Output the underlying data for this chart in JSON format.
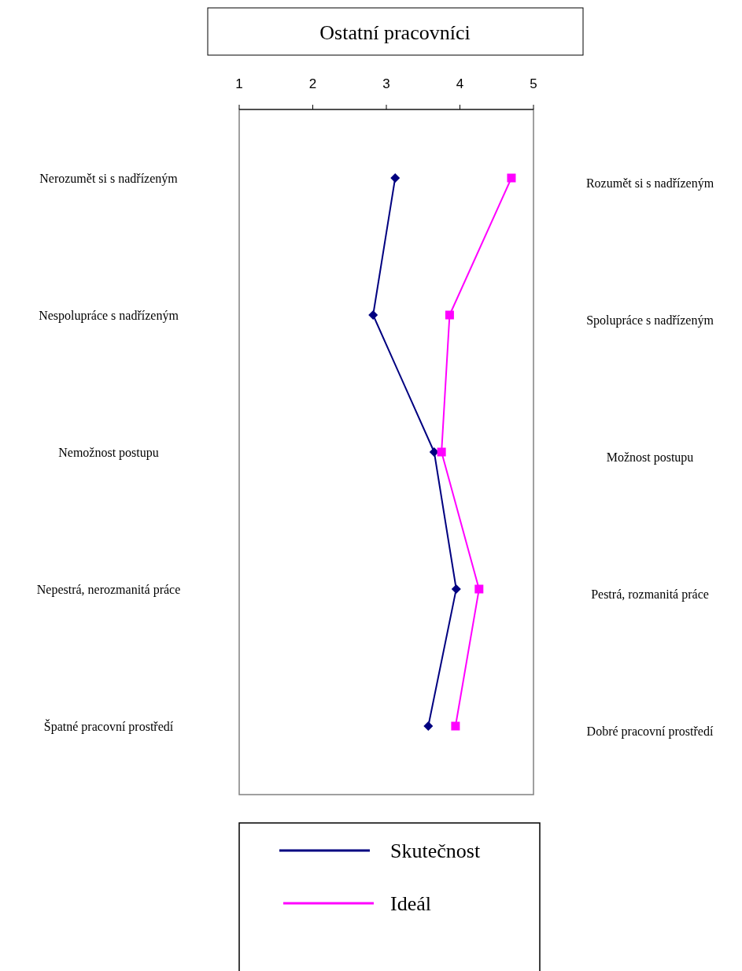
{
  "chart_data": {
    "type": "line",
    "orientation": "horizontal",
    "title": "Ostatní pracovníci",
    "categories": [
      "Nerozumět si s nadřízeným",
      "Nespolupráce s nadřízeným",
      "Nemožnost postupu",
      "Nepestrá, nerozmanitá práce",
      "Špatné pracovní prostředí"
    ],
    "y2_categories": [
      "Rozumět si s nadřízeným",
      "Spolupráce s nadřízeným",
      "Možnost postupu",
      "Pestrá, rozmanitá práce",
      "Dobré pracovní prostředí"
    ],
    "series": [
      {
        "name": "Skutečnost",
        "color": "#000080",
        "marker": "diamond",
        "values": [
          3.12,
          2.82,
          3.65,
          3.95,
          3.57
        ]
      },
      {
        "name": "Ideál",
        "color": "#ff00ff",
        "marker": "square",
        "values": [
          4.7,
          3.86,
          3.75,
          4.26,
          3.94
        ]
      }
    ],
    "xlim": [
      1,
      5
    ],
    "xticks": [
      1,
      2,
      3,
      4,
      5
    ],
    "legend": "bottom",
    "grid": false
  }
}
